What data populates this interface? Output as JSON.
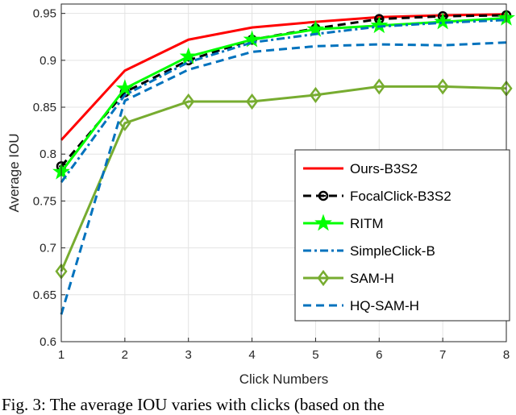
{
  "chart_data": {
    "type": "line",
    "title": "",
    "xlabel": "Click Numbers",
    "ylabel": "Average IOU",
    "x": [
      1,
      2,
      3,
      4,
      5,
      6,
      7,
      8
    ],
    "xlim": [
      1,
      8
    ],
    "ylim": [
      0.6,
      0.96
    ],
    "xticks": [
      "1",
      "2",
      "3",
      "4",
      "5",
      "6",
      "7",
      "8"
    ],
    "yticks": [
      "0.6",
      "0.65",
      "0.7",
      "0.75",
      "0.8",
      "0.85",
      "0.9",
      "0.95"
    ],
    "grid": true,
    "legend_position": "bottom-right",
    "series": [
      {
        "name": "Ours-B3S2",
        "color": "#ff0000",
        "dash": "solid",
        "marker": "none",
        "values": [
          0.815,
          0.889,
          0.922,
          0.935,
          0.941,
          0.946,
          0.948,
          0.949
        ]
      },
      {
        "name": "FocalClick-B3S2",
        "color": "#000000",
        "dash": "dashed",
        "marker": "circle",
        "values": [
          0.787,
          0.866,
          0.9,
          0.922,
          0.934,
          0.944,
          0.947,
          0.948
        ]
      },
      {
        "name": "RITM",
        "color": "#00ff00",
        "dash": "solid",
        "marker": "star",
        "values": [
          0.781,
          0.87,
          0.904,
          0.922,
          0.933,
          0.937,
          0.941,
          0.945
        ]
      },
      {
        "name": "SimpleClick-B",
        "color": "#0072bd",
        "dash": "dashdot",
        "marker": "none",
        "values": [
          0.77,
          0.863,
          0.898,
          0.919,
          0.928,
          0.936,
          0.94,
          0.943
        ]
      },
      {
        "name": "SAM-H",
        "color": "#77ac30",
        "dash": "solid",
        "marker": "diamond",
        "values": [
          0.675,
          0.833,
          0.856,
          0.856,
          0.863,
          0.872,
          0.872,
          0.87
        ]
      },
      {
        "name": "HQ-SAM-H",
        "color": "#0072bd",
        "dash": "dashed",
        "marker": "none",
        "values": [
          0.629,
          0.857,
          0.89,
          0.909,
          0.915,
          0.917,
          0.916,
          0.919
        ]
      }
    ]
  },
  "caption": "Fig. 3: The average IOU varies with clicks (based on the"
}
